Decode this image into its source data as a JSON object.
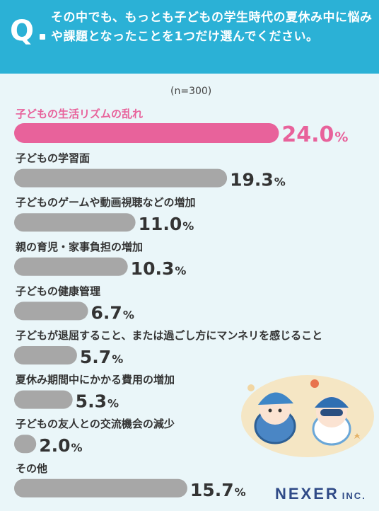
{
  "header": {
    "q_mark": "Q",
    "question": "その中でも、もっとも子どもの学生時代の夏休み中に悩みや課題となったことを1つだけ選んでください。"
  },
  "sample_size": "(n=300)",
  "logo": {
    "main": "NEXER",
    "suffix": "INC."
  },
  "colors": {
    "header": "#2bb1d6",
    "background": "#eaf6f9",
    "highlight": "#e8629b",
    "bar": "#a7a7a7",
    "text": "#333333"
  },
  "chart_data": {
    "type": "bar",
    "orientation": "horizontal",
    "unit": "%",
    "xlim": [
      0,
      25
    ],
    "categories": [
      "子どもの生活リズムの乱れ",
      "子どもの学習面",
      "子どものゲームや動画視聴などの増加",
      "親の育児・家事負担の増加",
      "子どもの健康管理",
      "子どもが退屈すること、または過ごし方にマンネリを感じること",
      "夏休み期間中にかかる費用の増加",
      "子どもの友人との交流機会の減少",
      "その他"
    ],
    "values": [
      24.0,
      19.3,
      11.0,
      10.3,
      6.7,
      5.7,
      5.3,
      2.0,
      15.7
    ],
    "value_labels": [
      "24.0",
      "19.3",
      "11.0",
      "10.3",
      "6.7",
      "5.7",
      "5.3",
      "2.0",
      "15.7"
    ],
    "highlight_index": 0
  }
}
